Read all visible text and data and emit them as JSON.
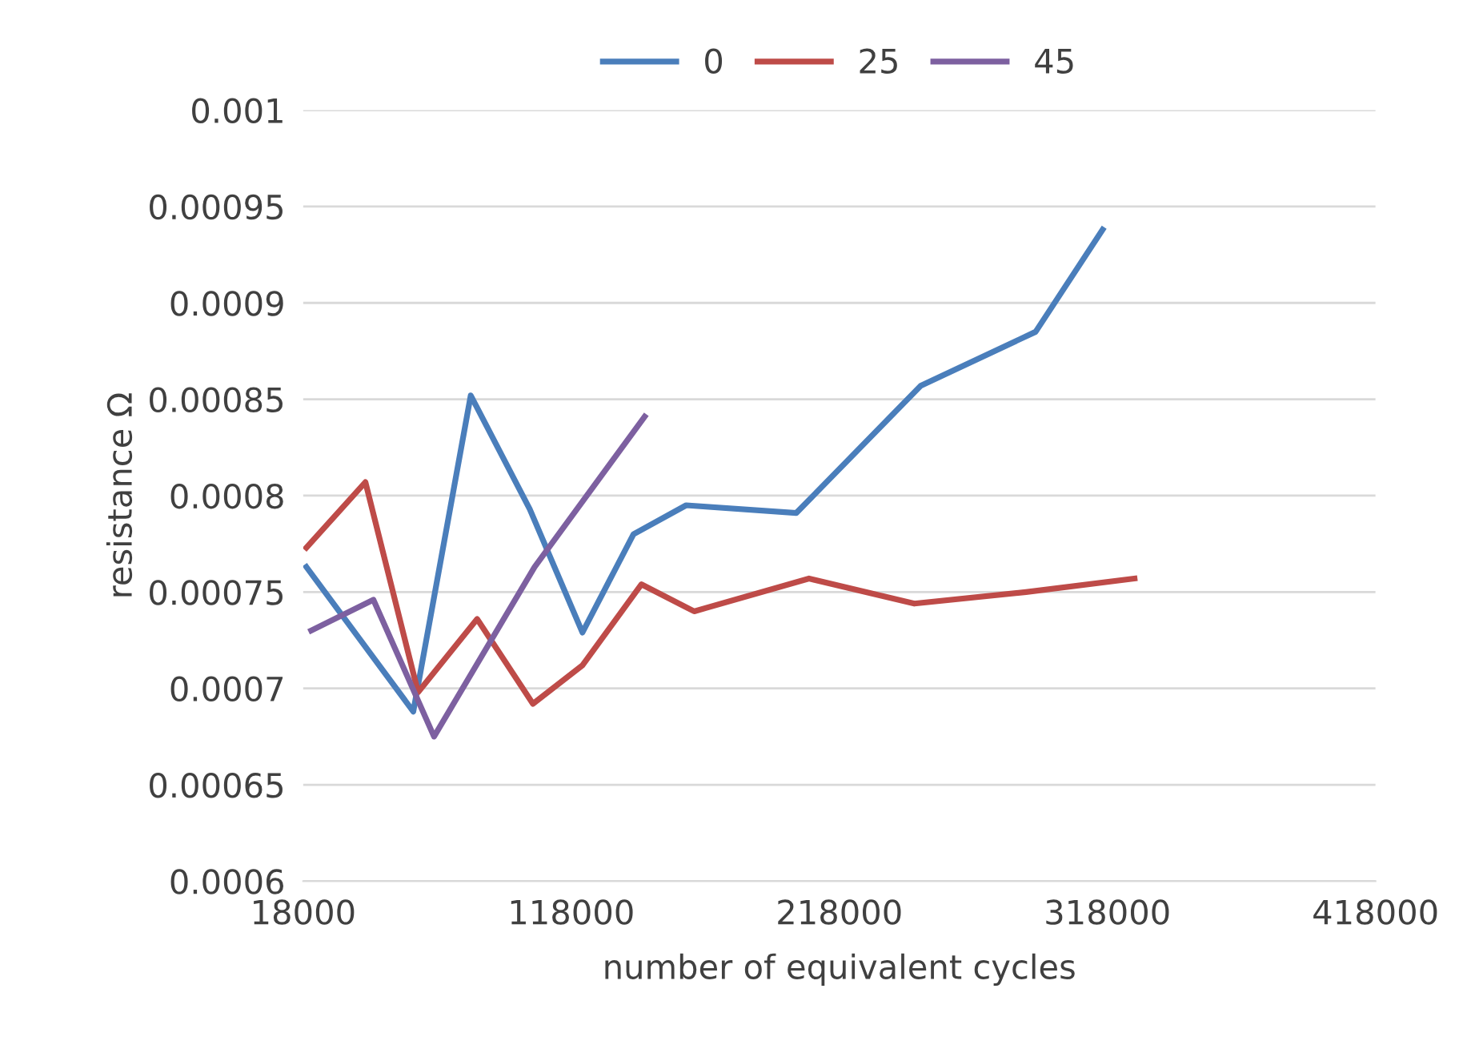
{
  "chart_data": {
    "type": "line",
    "xlabel": "number of equivalent cycles",
    "ylabel": "resistance Ω",
    "xlim": [
      18000,
      418000
    ],
    "xticks": [
      18000,
      118000,
      218000,
      318000,
      418000
    ],
    "ylim": [
      0.0006,
      0.001
    ],
    "yticks": [
      0.0006,
      0.00065,
      0.0007,
      0.00075,
      0.0008,
      0.00085,
      0.0009,
      0.00095,
      0.001
    ],
    "grid": "y",
    "legend": "top",
    "marker": "none",
    "line_style": "solid",
    "series": [
      {
        "name": "0",
        "color": "#4a7ebb",
        "x": [
          19190,
          59071,
          80500,
          102524,
          122167,
          141214,
          160857,
          201929,
          248357,
          291214,
          316214
        ],
        "values": [
          0.000763,
          0.000688,
          0.000852,
          0.000793,
          0.000729,
          0.00078,
          0.000795,
          0.000791,
          0.000857,
          0.000885,
          0.000938
        ]
      },
      {
        "name": "25",
        "color": "#be4b48",
        "x": [
          19190,
          41214,
          60857,
          82881,
          103714,
          122167,
          144190,
          163833,
          206690,
          245976,
          287643,
          328119
        ],
        "values": [
          0.000773,
          0.000807,
          0.000698,
          0.000736,
          0.000692,
          0.000712,
          0.000754,
          0.00074,
          0.000757,
          0.000744,
          0.00075,
          0.000757
        ]
      },
      {
        "name": "45",
        "color": "#7d60a0",
        "x": [
          20976,
          44190,
          66810,
          104310,
          145381
        ],
        "values": [
          0.00073,
          0.000746,
          0.000675,
          0.000763,
          0.000841
        ]
      }
    ]
  }
}
